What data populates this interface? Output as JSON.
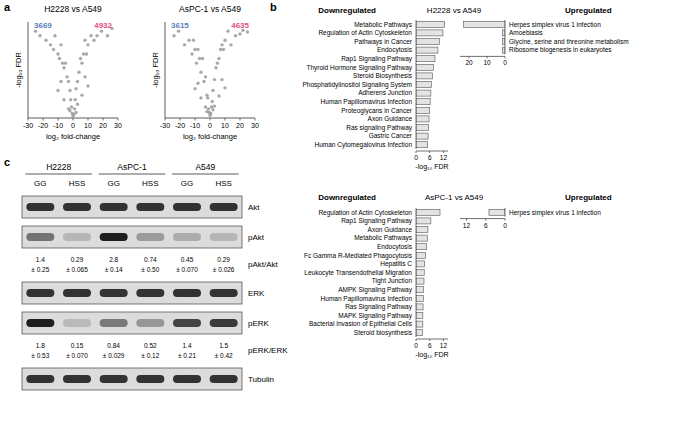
{
  "panels": [
    "a",
    "b",
    "c"
  ],
  "chart_data": [
    {
      "type": "scatter",
      "title": "H2228 vs A549",
      "x_label": "log₂ fold-change",
      "y_label": "-log₁₀ FDR",
      "x": [
        -25,
        -22,
        -18,
        -15,
        -13,
        -12,
        -10,
        -9,
        -8,
        -7,
        -6,
        -5,
        -4,
        -3,
        -2,
        -1.5,
        -1,
        -0.5,
        0,
        0.5,
        1,
        1.5,
        2,
        3,
        4,
        5,
        6,
        7,
        8,
        9,
        10,
        12,
        14,
        16,
        19,
        23,
        26,
        -3,
        3,
        -6,
        6,
        -10,
        10,
        -2,
        2,
        -8,
        8
      ],
      "values": [
        9.5,
        9,
        8.5,
        8,
        7.5,
        9,
        7,
        6.5,
        8,
        6,
        5.5,
        6,
        4.5,
        4,
        3,
        2,
        1.2,
        0.5,
        0.2,
        0.4,
        1,
        2,
        3.2,
        4,
        5,
        6.5,
        6,
        7,
        8.5,
        7,
        8,
        9,
        8.5,
        9,
        9.5,
        9,
        9.8,
        1,
        1.5,
        2,
        2.5,
        3,
        3.5,
        0.8,
        0.6,
        4,
        4.5
      ],
      "color": "#9a9a9a",
      "xlim": [
        -30,
        30
      ],
      "xticks": [
        -30,
        -20,
        -10,
        0,
        10,
        20,
        30
      ],
      "ylim": [
        0,
        10.5
      ],
      "tick_labels": "x",
      "annotations": [
        {
          "text": "3669",
          "color": "#5b7fbf"
        },
        {
          "text": "4932",
          "color": "#e0507a"
        }
      ]
    },
    {
      "type": "scatter",
      "title": "AsPC-1 vs A549",
      "x_label": "log₂ fold-change",
      "y_label": "-log₁₀ FDR",
      "x": [
        -24,
        -21,
        -17,
        -14,
        -12,
        -11,
        -10,
        -9,
        -8,
        -7,
        -6,
        -5,
        -4,
        -3,
        -2,
        -1.5,
        -1,
        -0.5,
        0,
        0.5,
        1,
        1.5,
        2,
        3,
        4,
        5,
        6,
        7,
        8,
        9,
        10,
        12,
        14,
        17,
        20,
        22,
        25,
        -3,
        3,
        -6,
        6,
        -10,
        10,
        -2,
        2,
        -8,
        8
      ],
      "values": [
        9,
        9.5,
        8,
        8.5,
        7,
        8.5,
        7.5,
        6,
        7.5,
        6.5,
        5,
        6.5,
        4,
        4.5,
        2.5,
        2.2,
        1,
        0.6,
        0.3,
        0.5,
        1.2,
        1.8,
        3,
        4.2,
        5.5,
        6,
        6.5,
        7.5,
        8,
        7.5,
        8.5,
        9.5,
        8,
        9,
        9.2,
        9.6,
        9.4,
        1.2,
        1.3,
        2.2,
        2.4,
        3.2,
        3.3,
        0.7,
        0.9,
        3.8,
        4.2
      ],
      "color": "#9a9a9a",
      "xlim": [
        -30,
        30
      ],
      "xticks": [
        -30,
        -20,
        -10,
        0,
        10,
        20,
        30
      ],
      "ylim": [
        0,
        10.5
      ],
      "tick_labels": "x",
      "annotations": [
        {
          "text": "3615",
          "color": "#5b7fbf"
        },
        {
          "text": "4635",
          "color": "#e0507a"
        }
      ]
    },
    {
      "type": "bar",
      "orientation": "horizontal",
      "title": "Downregulated",
      "subtitle": "H2228 vs A549",
      "x_label": "-log₁₀ FDR",
      "categories": [
        "Metabolic Pathways",
        "Regulation of Actin Cytoskeleton",
        "Pathways in Cancer",
        "Endocytosis",
        "Rap1 Signaling Pathway",
        "Thyroid Hormone Signaling Pathway",
        "Steroid Biosynthesis",
        "Phosphatidylinositol Signaling System",
        "Adherens Junction",
        "Human Papillomavirus Infection",
        "Proteoglycans in Cancer",
        "Axon Guidance",
        "Ras signaling Pathway",
        "Gastric Cancer",
        "Human Cytomegalovirus Infection"
      ],
      "values": [
        12.5,
        11.8,
        10.2,
        9.6,
        8.3,
        7.6,
        7.2,
        6.8,
        6.5,
        6.2,
        6.0,
        5.7,
        5.5,
        5.3,
        5.1
      ],
      "color": "#e3e3e3",
      "xlim": [
        0,
        14
      ],
      "xticks": [
        0,
        6,
        12
      ]
    },
    {
      "type": "bar",
      "orientation": "horizontal",
      "title": "Upregulated",
      "categories": [
        "Herpes simplex virus 1 infection",
        "Amoebiasis",
        "Glycine, serine and threonine metabolism",
        "Ribosome biogenesis in eukaryotes"
      ],
      "values": [
        23,
        1.5,
        1.5,
        1.5
      ],
      "color": "#e3e3e3",
      "xlim": [
        25,
        0
      ],
      "xticks": [
        20,
        10,
        0
      ]
    },
    {
      "type": "bar",
      "orientation": "horizontal",
      "title": "Downregulated",
      "subtitle": "AsPC-1 vs A549",
      "x_label": "-log₁₀ FDR",
      "categories": [
        "Regulation of Actin Cytoskeleton",
        "Rap1 Signaling Pathway",
        "Axon Guidance",
        "Metabolic Pathways",
        "Endocytosis",
        "Fc Gamma R-Mediated Phagocytosis",
        "Hepatitis C",
        "Leukocyte Transendothelial Migration",
        "Tight Junction",
        "AMPK Signaling Pathway",
        "Human Papillomavirus Infection",
        "Ras Signaling Pathway",
        "MAPK Signaling Pathway",
        "Bacterial Invasion of Epithelial Cells",
        "Steroid biosynthesis"
      ],
      "values": [
        10.5,
        6.5,
        5.2,
        5.0,
        4.6,
        4.2,
        3.8,
        3.6,
        3.5,
        3.3,
        3.2,
        3.1,
        3.0,
        3.0,
        2.9
      ],
      "color": "#e3e3e3",
      "xlim": [
        0,
        14
      ],
      "xticks": [
        0,
        6,
        12
      ]
    },
    {
      "type": "bar",
      "orientation": "horizontal",
      "title": "Upregulated",
      "categories": [
        "Herpes simplex virus 1 infection"
      ],
      "values": [
        5
      ],
      "color": "#e3e3e3",
      "xlim": [
        14,
        0
      ],
      "xticks": [
        12,
        6,
        0
      ]
    }
  ],
  "blot": {
    "groups": [
      "H2228",
      "AsPC-1",
      "A549"
    ],
    "lanes": [
      "GG",
      "HSS",
      "GG",
      "HSS",
      "GG",
      "HSS"
    ],
    "rows": [
      {
        "label": "Akt"
      },
      {
        "label": "pAkt",
        "ratio_label": "pAkt/Akt",
        "values": [
          1.4,
          0.29,
          2.8,
          0.74,
          0.45,
          0.29
        ],
        "value_labels": [
          "1.4",
          "0.29",
          "2.8",
          "0.74",
          "0.45",
          "0.29"
        ],
        "errors": [
          0.25,
          0.065,
          0.14,
          0.5,
          0.07,
          0.026
        ],
        "error_labels": [
          "± 0.25",
          "± 0.065",
          "± 0.14",
          "± 0.50",
          "± 0.070",
          "± 0.026"
        ]
      },
      {
        "label": "ERK"
      },
      {
        "label": "pERK",
        "ratio_label": "pERK/ERK",
        "values": [
          1.8,
          0.15,
          0.84,
          0.52,
          1.4,
          1.5
        ],
        "value_labels": [
          "1.8",
          "0.15",
          "0.84",
          "0.52",
          "1.4",
          "1.5"
        ],
        "errors": [
          0.53,
          0.07,
          0.029,
          0.12,
          0.21,
          0.42
        ],
        "error_labels": [
          "± 0.53",
          "± 0.070",
          "± 0.029",
          "± 0.12",
          "± 0.21",
          "± 0.42"
        ]
      },
      {
        "label": "Tubulin"
      }
    ]
  }
}
